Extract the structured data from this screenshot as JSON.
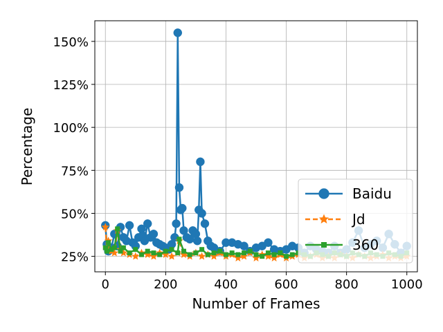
{
  "chart_data": {
    "type": "line",
    "title": "",
    "xlabel": "Number of Frames",
    "ylabel": "Percentage",
    "xlim": [
      -35,
      1035
    ],
    "ylim": [
      16,
      162
    ],
    "x_ticks": [
      0,
      200,
      400,
      600,
      800,
      1000
    ],
    "x_tick_labels": [
      "0",
      "200",
      "400",
      "600",
      "800",
      "1000"
    ],
    "y_ticks": [
      25,
      50,
      75,
      100,
      125,
      150
    ],
    "y_tick_labels": [
      "25%",
      "50%",
      "75%",
      "100%",
      "125%",
      "150%"
    ],
    "grid": true,
    "legend_position": "lower-right",
    "colors": {
      "Baidu": "#1f77b4",
      "Jd": "#ff7f0e",
      "360": "#2ca02c"
    },
    "series": [
      {
        "name": "Baidu",
        "marker": "circle",
        "line_style": "solid",
        "x": [
          0,
          5,
          10,
          20,
          30,
          40,
          50,
          60,
          70,
          80,
          90,
          100,
          110,
          120,
          125,
          130,
          140,
          150,
          160,
          170,
          180,
          190,
          200,
          210,
          220,
          230,
          235,
          240,
          245,
          250,
          255,
          260,
          270,
          280,
          290,
          300,
          305,
          310,
          315,
          320,
          330,
          340,
          350,
          360,
          380,
          400,
          420,
          440,
          460,
          480,
          500,
          520,
          540,
          560,
          580,
          600,
          620,
          640,
          660,
          680,
          700,
          720,
          740,
          760,
          780,
          800,
          820,
          840,
          860,
          880,
          900,
          920,
          940,
          960,
          980,
          1000
        ],
        "y": [
          43,
          32,
          28,
          30,
          38,
          31,
          42,
          36,
          34,
          43,
          33,
          31,
          36,
          41,
          37,
          34,
          44,
          36,
          38,
          33,
          32,
          31,
          30,
          29,
          32,
          36,
          44,
          155,
          65,
          52,
          53,
          40,
          36,
          35,
          40,
          38,
          34,
          52,
          80,
          50,
          44,
          34,
          31,
          30,
          28,
          33,
          33,
          32,
          31,
          28,
          30,
          31,
          33,
          29,
          28,
          29,
          31,
          30,
          27,
          31,
          29,
          28,
          27,
          31,
          27,
          29,
          33,
          40,
          30,
          32,
          34,
          30,
          38,
          32,
          27,
          31
        ]
      },
      {
        "name": "Jd",
        "marker": "star",
        "line_style": "dashed",
        "x": [
          0,
          5,
          10,
          20,
          30,
          40,
          50,
          60,
          80,
          100,
          120,
          140,
          160,
          180,
          200,
          220,
          240,
          245,
          260,
          280,
          300,
          320,
          340,
          360,
          380,
          400,
          420,
          440,
          460,
          480,
          500,
          520,
          540,
          560,
          580,
          600,
          620,
          640,
          660,
          680,
          700,
          720,
          740,
          760,
          780,
          800,
          820,
          840,
          860,
          880,
          900,
          920,
          940,
          960,
          980,
          1000
        ],
        "y": [
          42,
          30,
          34,
          28,
          27,
          40,
          29,
          27,
          26,
          25,
          27,
          26,
          25,
          27,
          26,
          25,
          27,
          34,
          26,
          25,
          27,
          25,
          26,
          25,
          27,
          25,
          26,
          24,
          25,
          27,
          24,
          26,
          25,
          24,
          26,
          24,
          25,
          26,
          24,
          25,
          26,
          24,
          25,
          24,
          26,
          25,
          24,
          26,
          25,
          24,
          25,
          26,
          24,
          25,
          24,
          25
        ]
      },
      {
        "name": "360",
        "marker": "square",
        "line_style": "solid",
        "x": [
          0,
          5,
          10,
          20,
          30,
          40,
          50,
          60,
          80,
          100,
          120,
          140,
          160,
          180,
          200,
          220,
          240,
          245,
          260,
          280,
          300,
          320,
          340,
          360,
          380,
          400,
          420,
          440,
          460,
          480,
          500,
          520,
          540,
          560,
          580,
          600,
          620,
          640,
          660,
          680,
          700,
          720,
          740,
          760,
          780,
          800,
          820,
          840,
          860,
          880,
          900,
          920,
          940,
          960,
          980,
          1000
        ],
        "y": [
          30,
          28,
          33,
          29,
          30,
          41,
          28,
          30,
          27,
          29,
          26,
          28,
          27,
          26,
          28,
          29,
          27,
          35,
          28,
          26,
          27,
          29,
          26,
          27,
          28,
          26,
          27,
          26,
          27,
          28,
          26,
          25,
          27,
          26,
          27,
          25,
          26,
          27,
          26,
          25,
          27,
          26,
          25,
          27,
          26,
          25,
          27,
          26,
          25,
          27,
          26,
          25,
          27,
          26,
          25,
          27
        ]
      }
    ]
  }
}
